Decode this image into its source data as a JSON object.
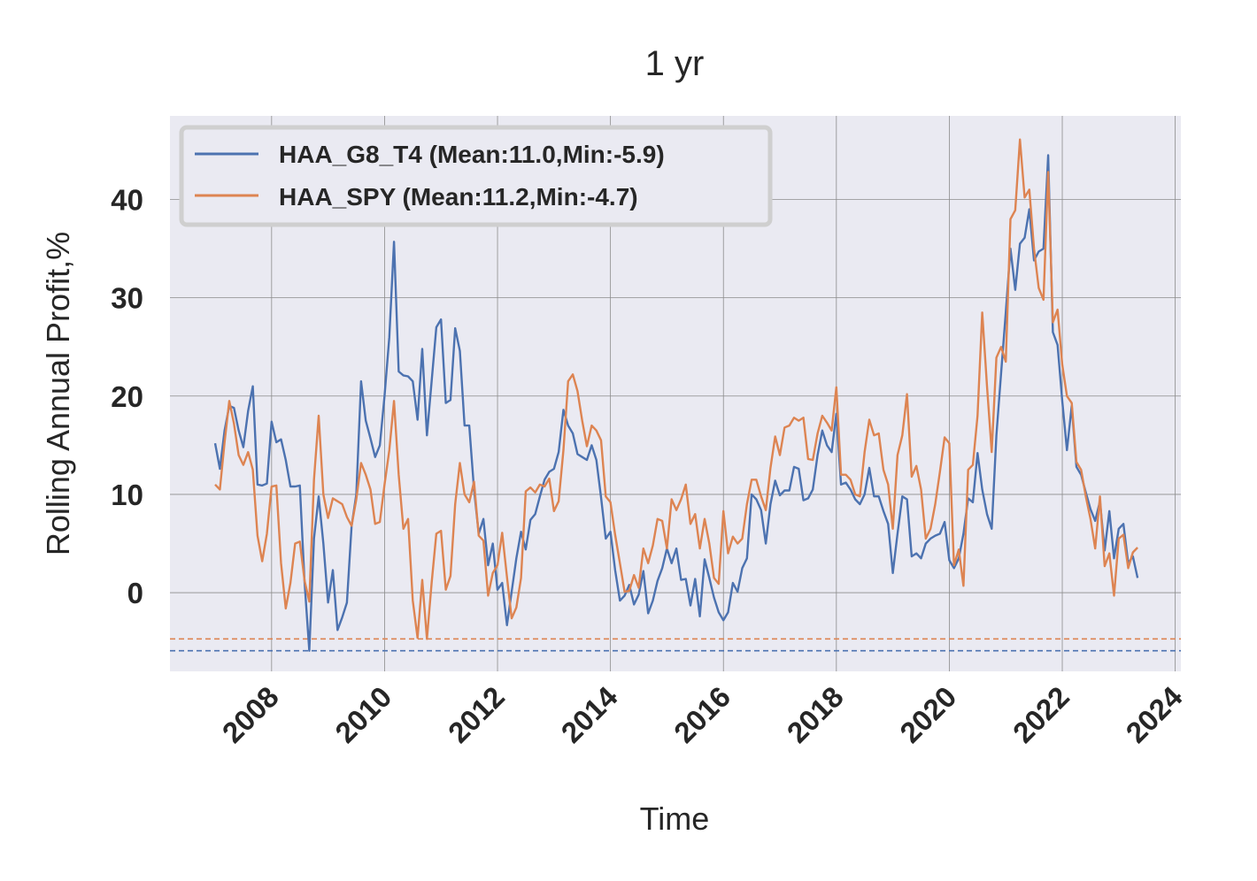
{
  "chart_data": {
    "type": "line",
    "title": "1 yr",
    "xlabel": "Time",
    "ylabel": "Rolling Annual Profit,%",
    "xlim": [
      2006.2,
      2024.1
    ],
    "ylim": [
      -8,
      48.5
    ],
    "x_ticks": [
      "2008",
      "2010",
      "2012",
      "2014",
      "2016",
      "2018",
      "2020",
      "2022",
      "2024"
    ],
    "y_ticks": [
      "0",
      "10",
      "20",
      "30",
      "40"
    ],
    "grid": true,
    "legend_position": "top-left",
    "x_start": 2007.0,
    "x_step": 0.0833333,
    "series": [
      {
        "name": "HAA_G8_T4 (Mean:11.0,Min:-5.9)",
        "color": "#4c72b0",
        "min_line": -5.9,
        "values": [
          15.2,
          12.6,
          16.5,
          19.0,
          18.8,
          16.5,
          14.8,
          18.5,
          21.0,
          11.0,
          10.9,
          11.1,
          17.4,
          15.3,
          15.6,
          13.5,
          10.8,
          10.8,
          10.9,
          1.0,
          -5.9,
          5.5,
          9.8,
          5.0,
          -1.0,
          2.3,
          -3.8,
          -2.5,
          -1.0,
          6.8,
          10.0,
          21.5,
          17.5,
          15.7,
          13.8,
          15.0,
          20.0,
          26.0,
          35.7,
          22.5,
          22.1,
          22.0,
          21.5,
          17.6,
          24.8,
          16.0,
          21.5,
          27.0,
          27.8,
          19.3,
          19.6,
          26.9,
          24.6,
          17.0,
          17.0,
          10.5,
          6.0,
          7.5,
          2.8,
          5.0,
          0.3,
          1.0,
          -3.3,
          0.1,
          3.5,
          6.2,
          4.4,
          7.4,
          8.0,
          9.8,
          11.5,
          12.3,
          12.6,
          14.3,
          18.6,
          17.0,
          16.2,
          14.1,
          13.8,
          13.5,
          15.0,
          13.5,
          9.7,
          5.5,
          6.2,
          2.3,
          -0.8,
          -0.3,
          0.8,
          -1.2,
          -0.2,
          2.2,
          -2.1,
          -0.8,
          1.2,
          2.5,
          4.5,
          3.0,
          4.5,
          1.3,
          1.4,
          -1.3,
          1.4,
          -2.4,
          3.4,
          1.5,
          -0.5,
          -2.0,
          -2.8,
          -2.0,
          1.0,
          0.1,
          2.5,
          3.5,
          10.0,
          9.5,
          8.4,
          5.0,
          9.0,
          11.4,
          9.9,
          10.4,
          10.4,
          12.8,
          12.6,
          9.4,
          9.6,
          10.5,
          14.0,
          16.5,
          15.0,
          14.3,
          18.2,
          11.0,
          11.2,
          10.5,
          9.5,
          9.0,
          10.0,
          12.7,
          9.8,
          9.8,
          8.3,
          7.0,
          2.0,
          6.0,
          9.8,
          9.5,
          3.7,
          4.0,
          3.5,
          5.0,
          5.5,
          5.8,
          6.0,
          7.2,
          3.3,
          2.5,
          3.5,
          6.0,
          9.6,
          9.2,
          14.2,
          10.5,
          8.0,
          6.5,
          16.0,
          22.3,
          28.5,
          35.0,
          30.8,
          35.5,
          36.1,
          39.0,
          33.8,
          34.7,
          35.0,
          44.5,
          26.5,
          25.2,
          19.5,
          14.5,
          19.0,
          12.8,
          12.0,
          10.2,
          8.5,
          7.3,
          9.3,
          4.3,
          8.3,
          3.5,
          6.5,
          7.0,
          3.0,
          3.7,
          1.5
        ]
      },
      {
        "name": "HAA_SPY (Mean:11.2,Min:-4.7)",
        "color": "#dd8452",
        "min_line": -4.7,
        "values": [
          11.0,
          10.5,
          15.3,
          19.5,
          17.2,
          14.0,
          13.0,
          14.3,
          12.5,
          5.8,
          3.2,
          6.0,
          10.8,
          10.9,
          3.0,
          -1.6,
          1.0,
          5.0,
          5.2,
          1.2,
          -0.9,
          11.5,
          18.0,
          10.0,
          7.6,
          9.6,
          9.3,
          9.0,
          7.7,
          6.8,
          9.5,
          13.2,
          12.0,
          10.5,
          7.0,
          7.2,
          11.0,
          14.5,
          19.5,
          12.0,
          6.5,
          7.5,
          -0.8,
          -4.6,
          1.3,
          -4.7,
          1.0,
          6.0,
          6.3,
          0.3,
          1.7,
          9.0,
          13.2,
          10.0,
          9.2,
          11.3,
          5.8,
          5.3,
          -0.3,
          2.0,
          2.8,
          6.1,
          1.6,
          -2.6,
          -1.5,
          1.5,
          10.3,
          10.7,
          10.2,
          11.0,
          10.8,
          11.6,
          8.3,
          9.3,
          14.5,
          21.5,
          22.2,
          20.5,
          17.5,
          14.9,
          17.0,
          16.5,
          15.5,
          9.8,
          9.2,
          5.9,
          3.0,
          0.1,
          0.2,
          1.8,
          0.5,
          4.5,
          3.0,
          4.8,
          7.5,
          7.3,
          4.5,
          9.5,
          8.4,
          9.5,
          11.0,
          7.0,
          8.0,
          4.5,
          7.5,
          5.0,
          1.5,
          0.9,
          8.3,
          4.0,
          5.7,
          5.0,
          5.5,
          9.0,
          11.5,
          11.5,
          9.8,
          8.4,
          12.7,
          15.9,
          14.0,
          16.8,
          17.0,
          17.8,
          17.5,
          17.8,
          13.6,
          13.5,
          16.2,
          18.0,
          17.3,
          16.5,
          20.9,
          12.0,
          12.0,
          11.5,
          10.0,
          9.8,
          14.3,
          17.6,
          16.0,
          16.2,
          12.5,
          11.0,
          6.5,
          14.0,
          16.0,
          20.2,
          11.8,
          12.9,
          10.5,
          5.5,
          6.5,
          9.0,
          12.3,
          15.8,
          15.2,
          2.8,
          4.4,
          0.7,
          12.5,
          13.0,
          18.0,
          28.5,
          21.0,
          14.3,
          23.9,
          25.0,
          23.5,
          38.0,
          38.9,
          46.1,
          40.2,
          41.0,
          35.0,
          31.0,
          29.8,
          42.8,
          27.5,
          28.8,
          23.2,
          20.0,
          19.3,
          13.3,
          12.5,
          9.8,
          7.5,
          4.5,
          9.8,
          2.7,
          4.0,
          -0.3,
          5.5,
          5.9,
          2.5,
          4.1,
          4.6
        ]
      }
    ]
  }
}
